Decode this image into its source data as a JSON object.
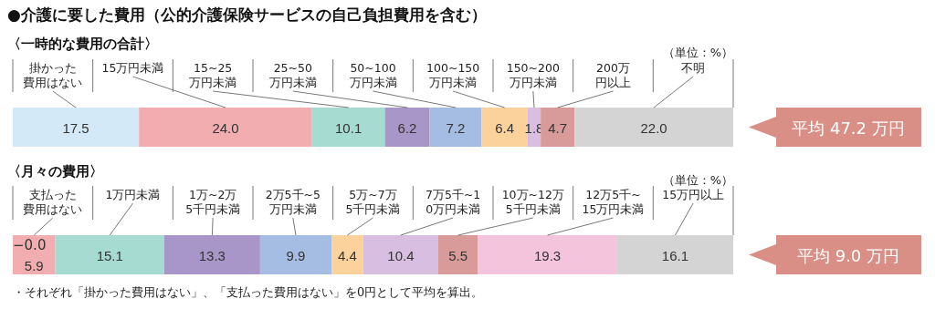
{
  "chart_data": [
    {
      "type": "bar",
      "orientation": "horizontal",
      "stacked": true,
      "title": "●介護に要した費用（公的介護保険サービスの自己負担費用を含む）",
      "subtitle": "〈一時的な費用の合計〉",
      "categories": [
        null
      ],
      "series": [
        {
          "name": "掛かった費用はない",
          "color": "#d3e9f7",
          "values": [
            17.5
          ],
          "value_labels": [
            "17.5"
          ]
        },
        {
          "name": "15万円未満",
          "color": "#f2adb0",
          "values": [
            24.0
          ],
          "value_labels": [
            "24.0"
          ]
        },
        {
          "name": "15~25万円未満",
          "color": "#a6dbd2",
          "values": [
            10.1
          ],
          "value_labels": [
            "10.1"
          ]
        },
        {
          "name": "25~50万円未満",
          "color": "#a996c8",
          "values": [
            6.2
          ],
          "value_labels": [
            "6.2"
          ]
        },
        {
          "name": "50~100万円未満",
          "color": "#a5bde3",
          "values": [
            7.2
          ],
          "value_labels": [
            "7.2"
          ]
        },
        {
          "name": "100~150万円未満",
          "color": "#fbd29b",
          "values": [
            6.4
          ],
          "value_labels": [
            "6.4"
          ]
        },
        {
          "name": "150~200万円未満",
          "color": "#d8bfe2",
          "values": [
            1.8
          ],
          "value_labels": [
            "1.8"
          ]
        },
        {
          "name": "200万円以上",
          "color": "#d99b99",
          "values": [
            4.7
          ],
          "value_labels": [
            "4.7"
          ]
        },
        {
          "name": "不明",
          "color": "#d4d4d4",
          "values": [
            22.0
          ],
          "value_labels": [
            "22.0"
          ]
        }
      ],
      "annotations": [
        "（単位：%）",
        "平均 47.2 万円"
      ]
    },
    {
      "type": "bar",
      "orientation": "horizontal",
      "stacked": true,
      "title": "〈月々の費用〉",
      "categories": [
        null
      ],
      "series": [
        {
          "name": "支払った費用はない",
          "color": "#f2adb0",
          "values": [
            5.9
          ],
          "value_labels": [
            "5.9"
          ]
        },
        {
          "name": "1万円未満",
          "color": "#a6dbd2",
          "values": [
            15.1
          ],
          "value_labels": [
            "15.1"
          ]
        },
        {
          "name": "1万~2万5千円未満",
          "color": "#a996c8",
          "values": [
            13.3
          ],
          "value_labels": [
            "13.3"
          ]
        },
        {
          "name": "2万5千~5万円未満",
          "color": "#a5bde3",
          "values": [
            9.9
          ],
          "value_labels": [
            "9.9"
          ]
        },
        {
          "name": "5万~7万5千円未満",
          "color": "#fbd29b",
          "values": [
            4.4
          ],
          "value_labels": [
            "4.4"
          ]
        },
        {
          "name": "7万5千~10万円未満",
          "color": "#d8bfe2",
          "values": [
            10.4
          ],
          "value_labels": [
            "10.4"
          ]
        },
        {
          "name": "10万~12万5千円未満",
          "color": "#d99b99",
          "values": [
            5.5
          ],
          "value_labels": [
            "5.5"
          ]
        },
        {
          "name": "12万5千~15万円未満",
          "color": "#f4c3dc",
          "values": [
            19.3
          ],
          "value_labels": [
            "19.3"
          ]
        },
        {
          "name": "15万円以上",
          "color": "#d4d4d4",
          "values": [
            16.1
          ],
          "value_labels": [
            "16.1"
          ]
        }
      ],
      "annotations": [
        "（単位：%）",
        "平均 9.0 万円",
        "・それぞれ「掛かった費用はない」、「支払った費用はない」を0円として平均を算出。",
        "−0.0"
      ]
    }
  ]
}
